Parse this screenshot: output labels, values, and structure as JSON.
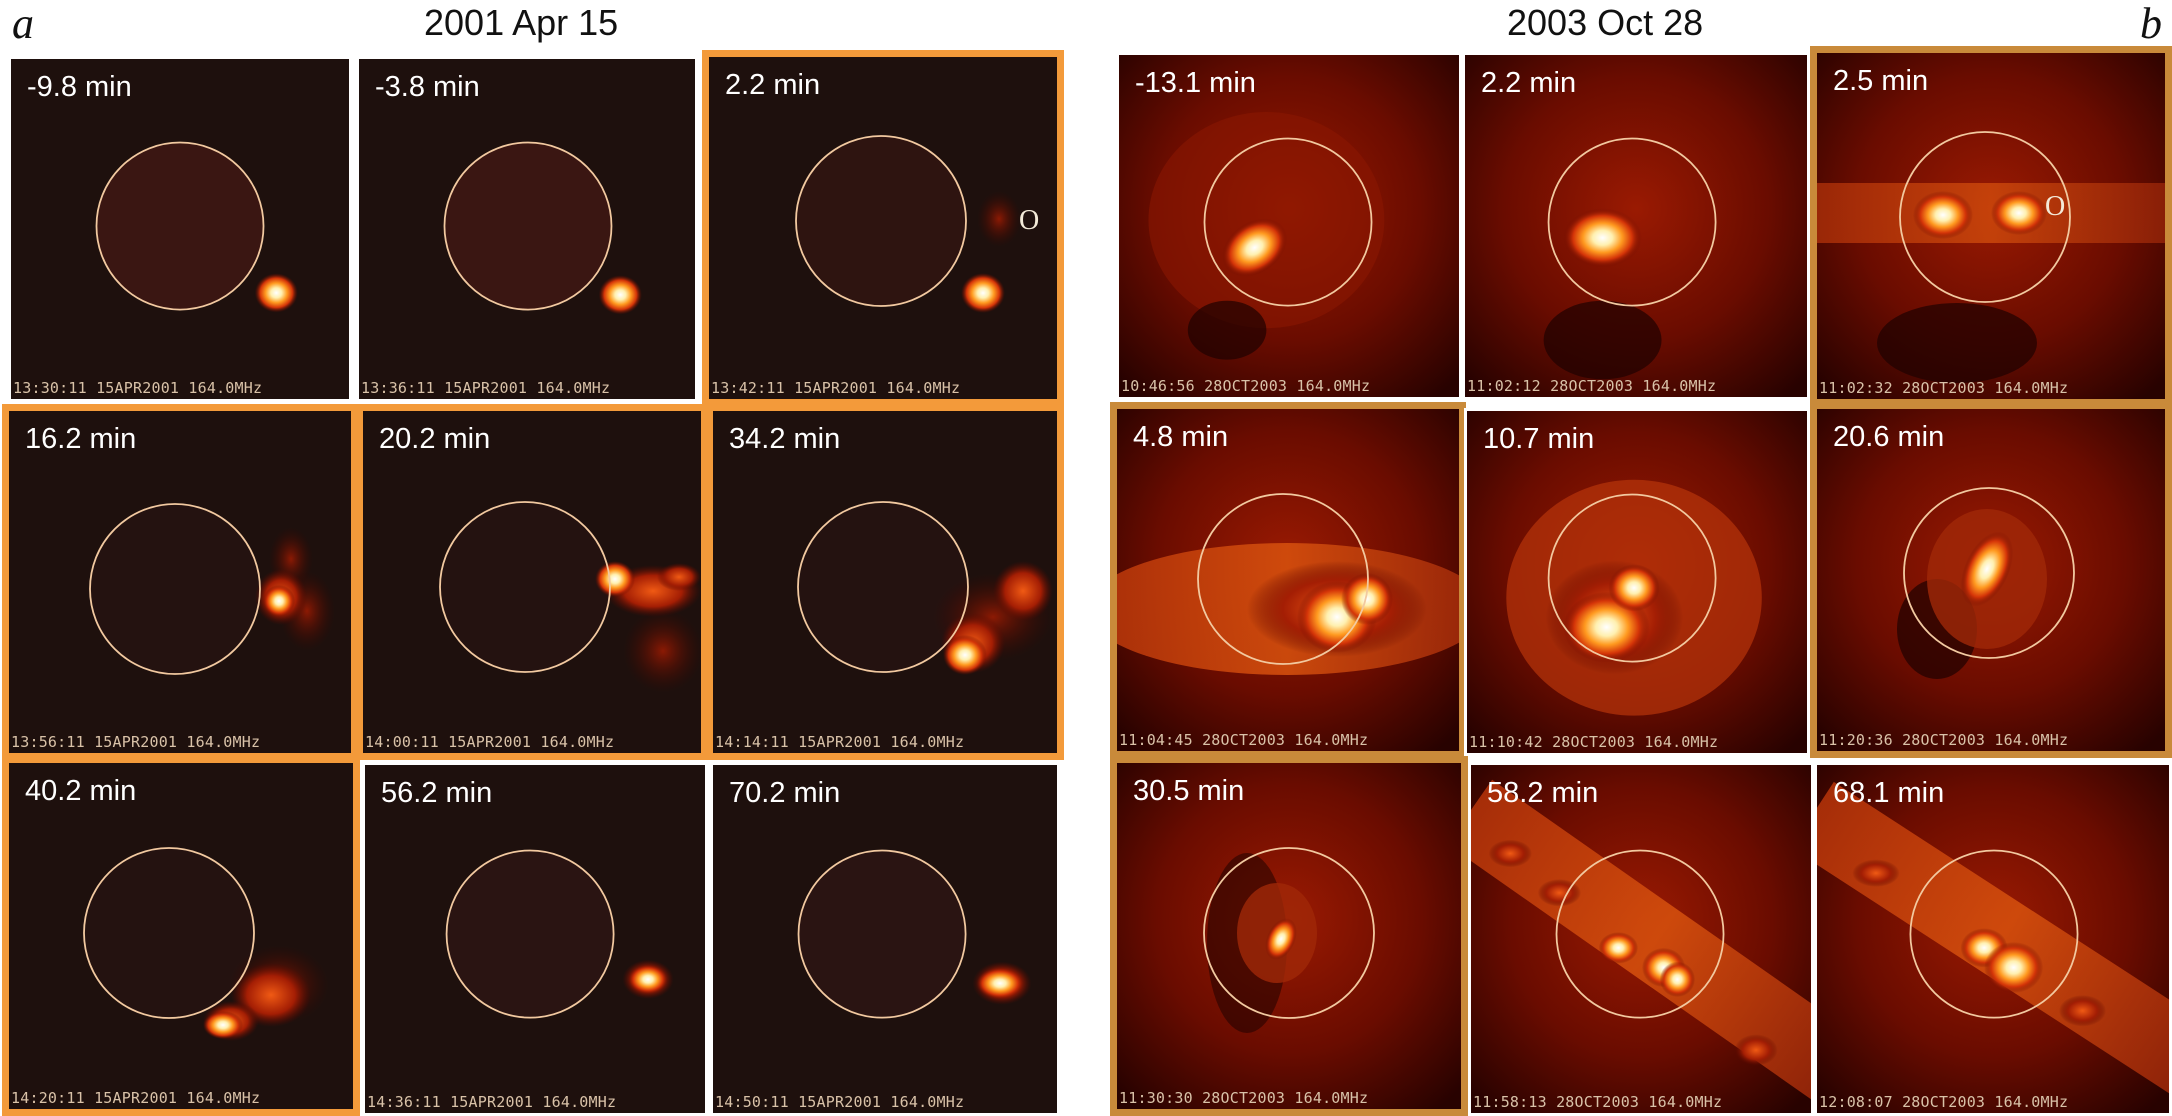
{
  "panel_a": {
    "letter": "a",
    "date": "2001 Apr 15",
    "frames": [
      {
        "time": "-9.8 min",
        "stamp": "13:30:11 15APR2001 164.0MHz"
      },
      {
        "time": "-3.8 min",
        "stamp": "13:36:11 15APR2001 164.0MHz"
      },
      {
        "time": "2.2 min",
        "stamp": "13:42:11 15APR2001 164.0MHz",
        "marker": "O"
      },
      {
        "time": "16.2 min",
        "stamp": "13:56:11 15APR2001 164.0MHz"
      },
      {
        "time": "20.2 min",
        "stamp": "14:00:11 15APR2001 164.0MHz"
      },
      {
        "time": "34.2 min",
        "stamp": "14:14:11 15APR2001 164.0MHz"
      },
      {
        "time": "40.2 min",
        "stamp": "14:20:11 15APR2001 164.0MHz"
      },
      {
        "time": "56.2 min",
        "stamp": "14:36:11 15APR2001 164.0MHz"
      },
      {
        "time": "70.2 min",
        "stamp": "14:50:11 15APR2001 164.0MHz"
      }
    ]
  },
  "panel_b": {
    "letter": "b",
    "date": "2003 Oct 28",
    "frames": [
      {
        "time": "-13.1 min",
        "stamp": "10:46:56 28OCT2003 164.0MHz"
      },
      {
        "time": "2.2 min",
        "stamp": "11:02:12 28OCT2003 164.0MHz"
      },
      {
        "time": "2.5 min",
        "stamp": "11:02:32 28OCT2003 164.0MHz",
        "marker": "O"
      },
      {
        "time": "4.8 min",
        "stamp": "11:04:45 28OCT2003 164.0MHz"
      },
      {
        "time": "10.7 min",
        "stamp": "11:10:42 28OCT2003 164.0MHz"
      },
      {
        "time": "20.6 min",
        "stamp": "11:20:36 28OCT2003 164.0MHz"
      },
      {
        "time": "30.5 min",
        "stamp": "11:30:30 28OCT2003 164.0MHz"
      },
      {
        "time": "58.2 min",
        "stamp": "11:58:13 28OCT2003 164.0MHz"
      },
      {
        "time": "68.1 min",
        "stamp": "12:08:07 28OCT2003 164.0MHz"
      }
    ]
  },
  "colors": {
    "highlight_a": "#f39a3a",
    "highlight_b": "#c98a3a",
    "solar_limb": "#f2c9a0",
    "image_background": "#1a0f0d"
  }
}
